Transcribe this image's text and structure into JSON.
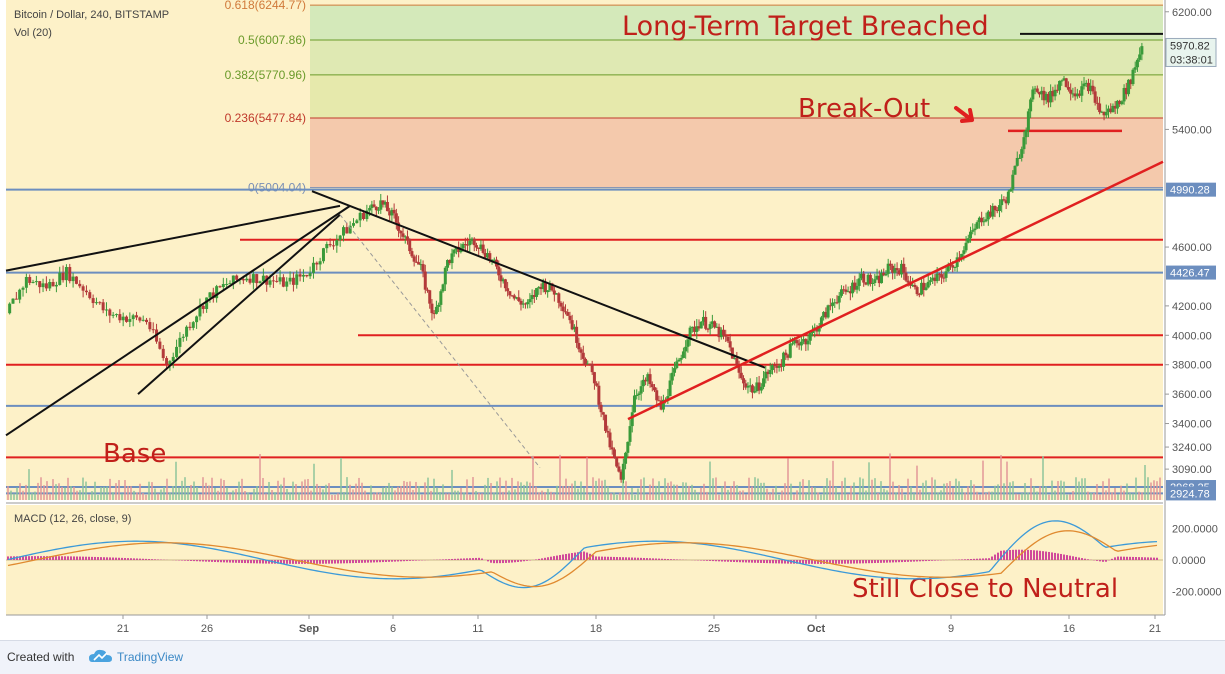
{
  "header": {
    "symbol_line": "Bitcoin / Dollar, 240, BITSTAMP",
    "volume_label": "Vol (20)",
    "macd_label": "MACD (12, 26, close, 9)"
  },
  "annotations": {
    "target": "Long-Term Target Breached",
    "breakout": "Break-Out",
    "base": "Base",
    "neutral": "Still Close to Neutral"
  },
  "fib_levels": [
    {
      "label": "0.618(6244.77)",
      "color": "#d07a3a"
    },
    {
      "label": "0.5(6007.86)",
      "color": "#6a9a2a"
    },
    {
      "label": "0.382(5770.96)",
      "color": "#6a9a2a"
    },
    {
      "label": "0.236(5477.84)",
      "color": "#c0392b"
    },
    {
      "label": "0(5004.04)",
      "color": "#7a8fb5"
    }
  ],
  "price_axis": {
    "ticks": [
      "6200.00",
      "5400.00",
      "4600.00",
      "4200.00",
      "4000.00",
      "3800.00",
      "3600.00",
      "3400.00",
      "3240.00",
      "3090.00"
    ],
    "badges": [
      {
        "label": "5970.82",
        "sub": "03:38:01",
        "color": "#e8f4ee",
        "text_color": "#333"
      },
      {
        "label": "4990.28",
        "color": "#6c8ebf",
        "text_color": "#ffffff"
      },
      {
        "label": "4426.47",
        "color": "#6c8ebf",
        "text_color": "#ffffff"
      },
      {
        "label": "2968.25",
        "color": "#6c8ebf",
        "text_color": "#ffffff"
      },
      {
        "label": "2924.78",
        "color": "#6c8ebf",
        "text_color": "#ffffff"
      }
    ]
  },
  "macd_axis": {
    "ticks": [
      "200.0000",
      "0.0000",
      "-200.0000"
    ]
  },
  "time_axis": {
    "ticks": [
      "21",
      "26",
      "Sep",
      "6",
      "11",
      "18",
      "25",
      "Oct",
      "9",
      "16",
      "21"
    ]
  },
  "footer": {
    "created_with": "Created with",
    "brand": "TradingView"
  },
  "colors": {
    "background": "#fdf1c8",
    "support_red": "#e02020",
    "support_blue": "#6c8ebf",
    "trend_black": "#111111",
    "annotation_red": "#c0201a",
    "candle_up": "#3a9a3a",
    "candle_down": "#b33a3a",
    "macd_line": "#3c9ad8",
    "signal_line": "#e08a30",
    "hist_color": "#d04a9a"
  },
  "chart_data": {
    "type": "candlestick",
    "title": "Bitcoin / Dollar, 240, BITSTAMP",
    "y_range": [
      2880,
      6280
    ],
    "price_path": [
      [
        0,
        4150
      ],
      [
        3,
        4380
      ],
      [
        6,
        4330
      ],
      [
        9,
        4430
      ],
      [
        12,
        4300
      ],
      [
        15,
        4150
      ],
      [
        18,
        4120
      ],
      [
        21,
        4100
      ],
      [
        24,
        3800
      ],
      [
        27,
        4050
      ],
      [
        30,
        4250
      ],
      [
        33,
        4350
      ],
      [
        36,
        4400
      ],
      [
        39,
        4380
      ],
      [
        42,
        4350
      ],
      [
        45,
        4420
      ],
      [
        48,
        4600
      ],
      [
        51,
        4720
      ],
      [
        54,
        4850
      ],
      [
        56,
        4900
      ],
      [
        58,
        4800
      ],
      [
        60,
        4620
      ],
      [
        62,
        4450
      ],
      [
        64,
        4120
      ],
      [
        66,
        4500
      ],
      [
        68,
        4600
      ],
      [
        70,
        4650
      ],
      [
        72,
        4550
      ],
      [
        74,
        4400
      ],
      [
        76,
        4250
      ],
      [
        78,
        4200
      ],
      [
        80,
        4350
      ],
      [
        82,
        4300
      ],
      [
        84,
        4150
      ],
      [
        86,
        3900
      ],
      [
        88,
        3700
      ],
      [
        90,
        3300
      ],
      [
        92,
        3000
      ],
      [
        94,
        3600
      ],
      [
        96,
        3700
      ],
      [
        98,
        3500
      ],
      [
        100,
        3750
      ],
      [
        102,
        4000
      ],
      [
        104,
        4100
      ],
      [
        106,
        4050
      ],
      [
        108,
        3950
      ],
      [
        110,
        3700
      ],
      [
        112,
        3620
      ],
      [
        114,
        3750
      ],
      [
        116,
        3820
      ],
      [
        118,
        3950
      ],
      [
        120,
        3980
      ],
      [
        122,
        4100
      ],
      [
        124,
        4250
      ],
      [
        126,
        4300
      ],
      [
        128,
        4400
      ],
      [
        130,
        4350
      ],
      [
        132,
        4450
      ],
      [
        134,
        4450
      ],
      [
        136,
        4300
      ],
      [
        138,
        4350
      ],
      [
        140,
        4400
      ],
      [
        142,
        4500
      ],
      [
        144,
        4650
      ],
      [
        146,
        4800
      ],
      [
        148,
        4850
      ],
      [
        150,
        4950
      ],
      [
        152,
        5300
      ],
      [
        154,
        5700
      ],
      [
        156,
        5600
      ],
      [
        158,
        5750
      ],
      [
        160,
        5650
      ],
      [
        162,
        5700
      ],
      [
        164,
        5500
      ],
      [
        166,
        5550
      ],
      [
        168,
        5700
      ],
      [
        170,
        5970
      ]
    ],
    "support_lines_red": [
      4650,
      4000,
      3800,
      3170
    ],
    "support_lines_blue": [
      4990.28,
      4426.47,
      3520,
      2968.25,
      2924.78
    ],
    "fib_zone": {
      "top": 6244.77,
      "levels": [
        6007.86,
        5770.96,
        5477.84,
        5004.04
      ]
    },
    "macd_range": [
      -300,
      300
    ]
  }
}
